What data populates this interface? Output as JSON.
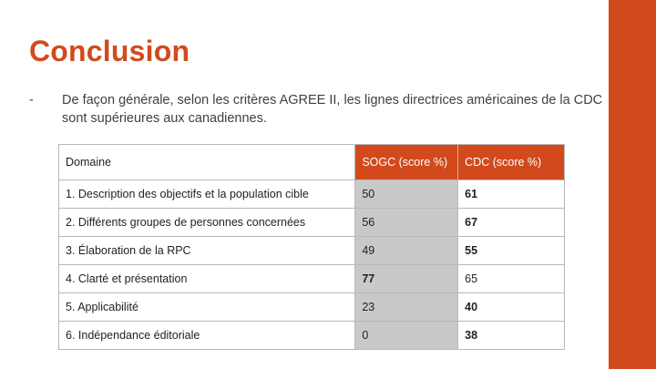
{
  "slide": {
    "title": "Conclusion",
    "bullet": {
      "marker": "-",
      "text": "De façon générale, selon les critères AGREE II, les lignes directrices américaines de la CDC sont supérieures aux canadiennes."
    },
    "colors": {
      "accent": "#D24A1C",
      "cell_grey": "#c9c9c9",
      "border": "#b8b8b8"
    }
  },
  "table": {
    "headers": {
      "domaine": "Domaine",
      "sogc": "SOGC (score %)",
      "cdc": "CDC (score %)"
    },
    "rows": [
      {
        "domaine": "1. Description des objectifs et la population cible",
        "sogc": "50",
        "cdc": "61"
      },
      {
        "domaine": "2. Différents groupes de personnes concernées",
        "sogc": "56",
        "cdc": "67"
      },
      {
        "domaine": "3. Élaboration de la RPC",
        "sogc": "49",
        "cdc": "55"
      },
      {
        "domaine": "4. Clarté et présentation",
        "sogc": "77",
        "cdc": "65"
      },
      {
        "domaine": "5. Applicabilité",
        "sogc": "23",
        "cdc": "40"
      },
      {
        "domaine": "6. Indépendance éditoriale",
        "sogc": "0",
        "cdc": "38"
      }
    ]
  }
}
